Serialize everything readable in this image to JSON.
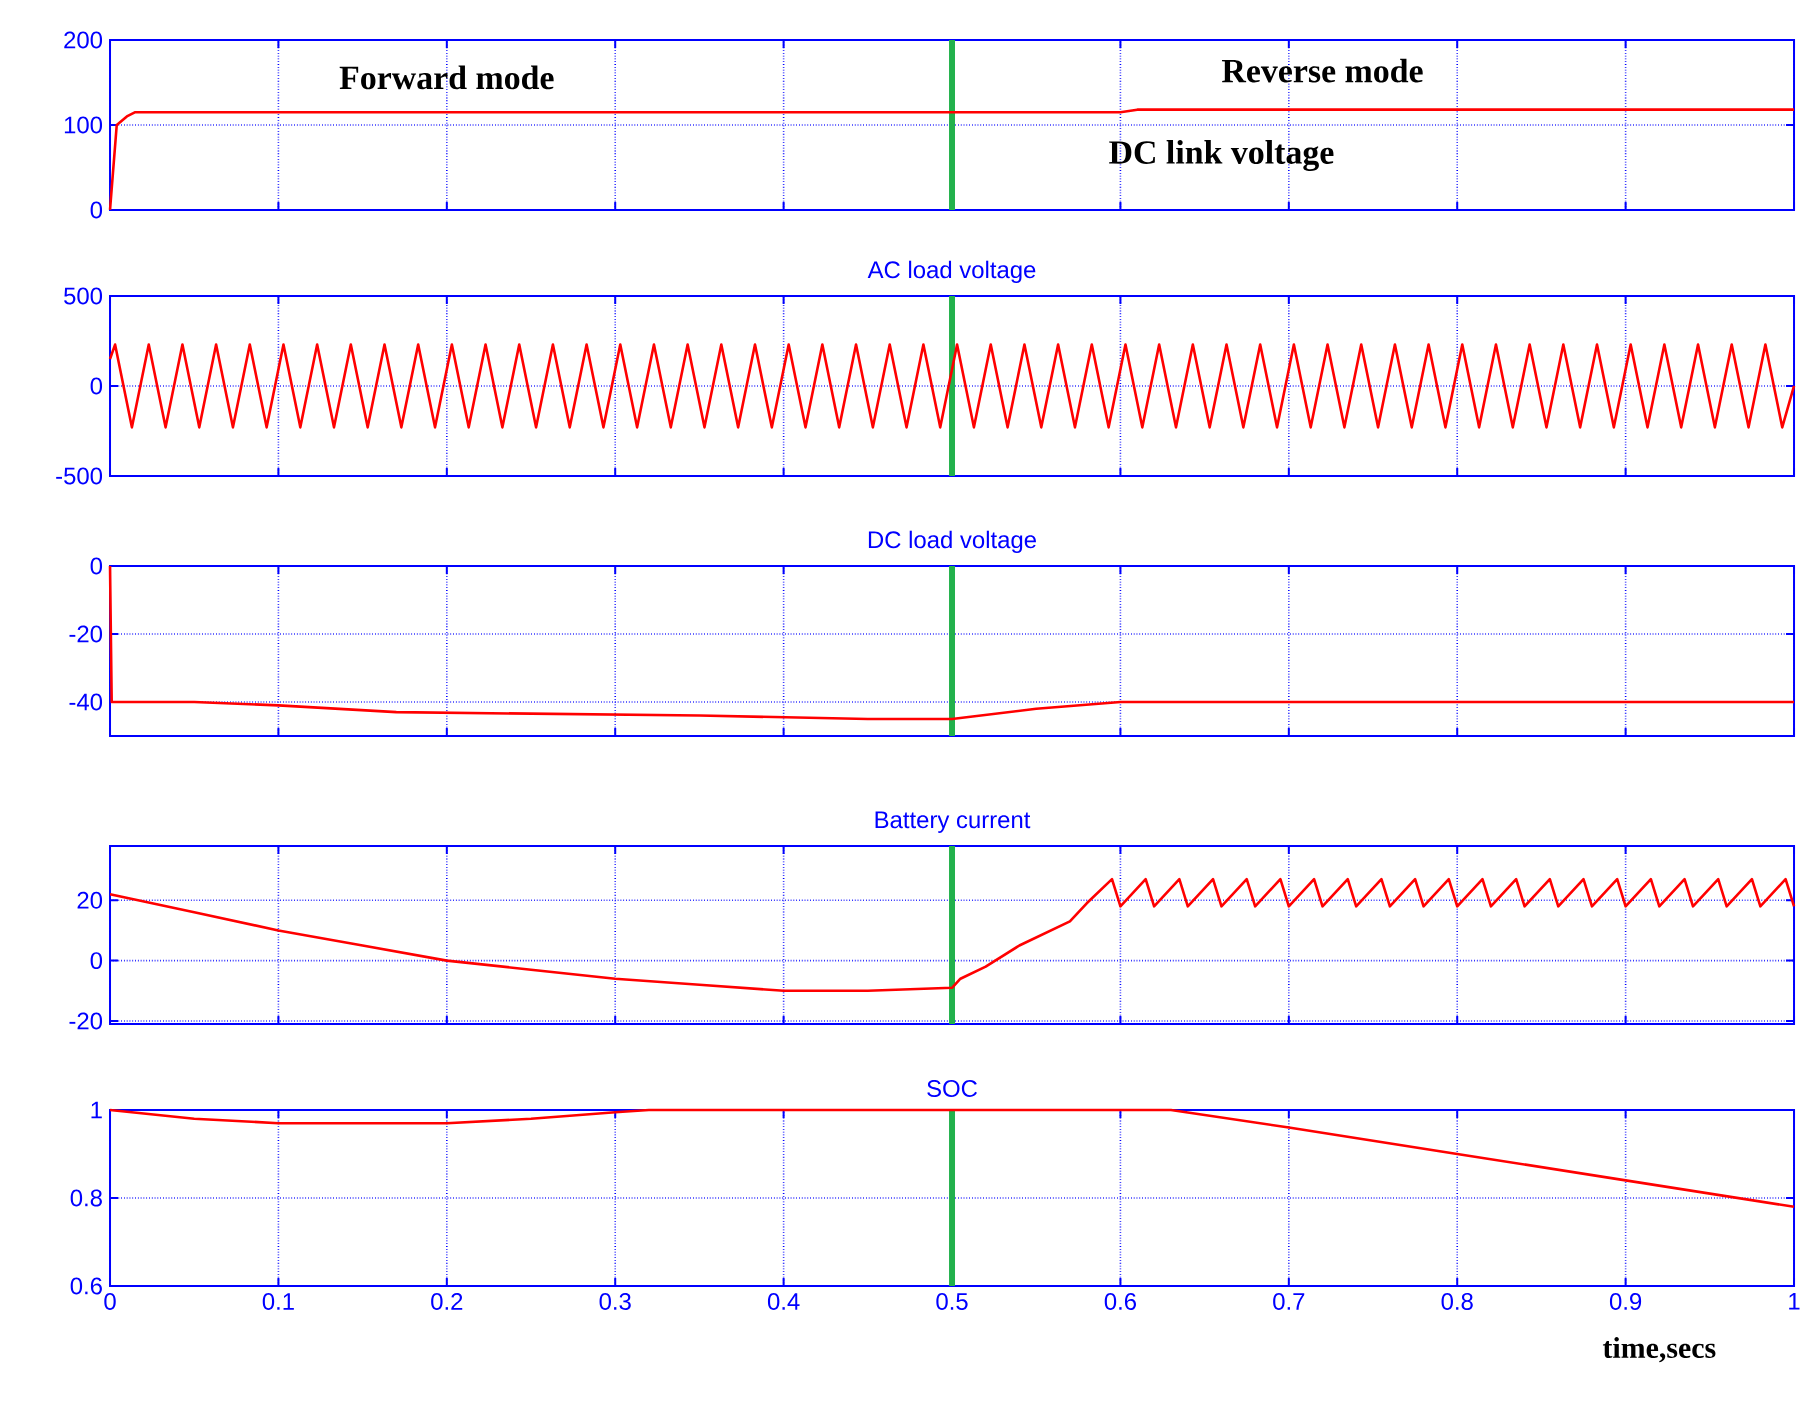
{
  "chart_data": [
    {
      "type": "line",
      "annotations": [
        "Forward mode",
        "Reverse mode",
        "DC link voltage"
      ],
      "x": [
        0,
        0.002,
        0.004,
        0.01,
        0.015,
        0.6,
        0.61,
        1
      ],
      "series": [
        {
          "color": "#ff0000",
          "values": [
            0,
            50,
            100,
            110,
            115,
            115,
            118,
            118
          ]
        }
      ],
      "xlim": [
        0,
        1
      ],
      "ylim": [
        0,
        200
      ],
      "xticks": [
        0,
        0.1,
        0.2,
        0.3,
        0.4,
        0.5,
        0.6,
        0.7,
        0.8,
        0.9,
        1
      ],
      "yticks": [
        0,
        100,
        200
      ],
      "grid": true,
      "tick_labels": "y",
      "ref_lines": [
        {
          "axis": "x",
          "value": 0.5,
          "color": "#22b14c"
        }
      ]
    },
    {
      "type": "line",
      "title": "AC load voltage",
      "x": [
        0,
        0.003,
        0.013,
        0.023,
        0.033,
        0.043,
        0.053,
        0.063,
        0.073,
        0.083,
        0.093,
        0.103,
        0.113,
        0.123,
        0.133,
        0.143,
        0.153,
        0.163,
        0.173,
        0.183,
        0.193,
        0.203,
        0.213,
        0.223,
        0.233,
        0.243,
        0.253,
        0.263,
        0.273,
        0.283,
        0.293,
        0.303,
        0.313,
        0.323,
        0.333,
        0.343,
        0.353,
        0.363,
        0.373,
        0.383,
        0.393,
        0.403,
        0.413,
        0.423,
        0.433,
        0.443,
        0.453,
        0.463,
        0.473,
        0.483,
        0.493,
        0.503,
        0.513,
        0.523,
        0.533,
        0.543,
        0.553,
        0.563,
        0.573,
        0.583,
        0.593,
        0.603,
        0.613,
        0.623,
        0.633,
        0.643,
        0.653,
        0.663,
        0.673,
        0.683,
        0.693,
        0.703,
        0.713,
        0.723,
        0.733,
        0.743,
        0.753,
        0.763,
        0.773,
        0.783,
        0.793,
        0.803,
        0.813,
        0.823,
        0.833,
        0.843,
        0.853,
        0.863,
        0.873,
        0.883,
        0.893,
        0.903,
        0.913,
        0.923,
        0.933,
        0.943,
        0.953,
        0.963,
        0.973,
        0.983,
        0.993,
        1
      ],
      "series": [
        {
          "color": "#ff0000",
          "values": [
            150,
            230,
            -230,
            230,
            -230,
            230,
            -230,
            230,
            -230,
            230,
            -230,
            230,
            -230,
            230,
            -230,
            230,
            -230,
            230,
            -230,
            230,
            -230,
            230,
            -230,
            230,
            -230,
            230,
            -230,
            230,
            -230,
            230,
            -230,
            230,
            -230,
            230,
            -230,
            230,
            -230,
            230,
            -230,
            230,
            -230,
            230,
            -230,
            230,
            -230,
            230,
            -230,
            230,
            -230,
            230,
            -230,
            230,
            -230,
            230,
            -230,
            230,
            -230,
            230,
            -230,
            230,
            -230,
            230,
            -230,
            230,
            -230,
            230,
            -230,
            230,
            -230,
            230,
            -230,
            230,
            -230,
            230,
            -230,
            230,
            -230,
            230,
            -230,
            230,
            -230,
            230,
            -230,
            230,
            -230,
            230,
            -230,
            230,
            -230,
            230,
            -230,
            230,
            -230,
            230,
            -230,
            230,
            -230,
            230,
            -230,
            230,
            -230,
            0
          ]
        }
      ],
      "xlim": [
        0,
        1
      ],
      "ylim": [
        -500,
        500
      ],
      "xticks": [
        0,
        0.1,
        0.2,
        0.3,
        0.4,
        0.5,
        0.6,
        0.7,
        0.8,
        0.9,
        1
      ],
      "yticks": [
        -500,
        0,
        500
      ],
      "grid": true,
      "tick_labels": "y",
      "ref_lines": [
        {
          "axis": "x",
          "value": 0.5,
          "color": "#22b14c"
        }
      ]
    },
    {
      "type": "line",
      "title": "DC load voltage",
      "x": [
        0,
        0.001,
        0.05,
        0.1,
        0.17,
        0.35,
        0.45,
        0.5,
        0.55,
        0.6,
        1
      ],
      "series": [
        {
          "color": "#ff0000",
          "values": [
            0,
            -40,
            -40,
            -41,
            -43,
            -44,
            -45,
            -45,
            -42,
            -40,
            -40
          ]
        }
      ],
      "xlim": [
        0,
        1
      ],
      "ylim": [
        -50,
        0
      ],
      "xticks": [
        0,
        0.1,
        0.2,
        0.3,
        0.4,
        0.5,
        0.6,
        0.7,
        0.8,
        0.9,
        1
      ],
      "yticks": [
        -40,
        -20,
        0
      ],
      "grid": true,
      "tick_labels": "y",
      "ref_lines": [
        {
          "axis": "x",
          "value": 0.5,
          "color": "#22b14c"
        }
      ]
    },
    {
      "type": "line",
      "title": "Battery current",
      "x": [
        0,
        0.05,
        0.1,
        0.15,
        0.2,
        0.25,
        0.3,
        0.35,
        0.4,
        0.45,
        0.5,
        0.505,
        0.52,
        0.54,
        0.57,
        0.58,
        0.595,
        0.6,
        0.615,
        0.62,
        0.635,
        0.64,
        0.655,
        0.66,
        0.675,
        0.68,
        0.695,
        0.7,
        0.715,
        0.72,
        0.735,
        0.74,
        0.755,
        0.76,
        0.775,
        0.78,
        0.795,
        0.8,
        0.815,
        0.82,
        0.835,
        0.84,
        0.855,
        0.86,
        0.875,
        0.88,
        0.895,
        0.9,
        0.915,
        0.92,
        0.935,
        0.94,
        0.955,
        0.96,
        0.975,
        0.98,
        0.995,
        1
      ],
      "series": [
        {
          "color": "#ff0000",
          "values": [
            22,
            16,
            10,
            5,
            0,
            -3,
            -6,
            -8,
            -10,
            -10,
            -9,
            -6,
            -2,
            5,
            13,
            19,
            27,
            18,
            27,
            18,
            27,
            18,
            27,
            18,
            27,
            18,
            27,
            18,
            27,
            18,
            27,
            18,
            27,
            18,
            27,
            18,
            27,
            18,
            27,
            18,
            27,
            18,
            27,
            18,
            27,
            18,
            27,
            18,
            27,
            18,
            27,
            18,
            27,
            18,
            27,
            18,
            27,
            18
          ]
        }
      ],
      "xlim": [
        0,
        1
      ],
      "ylim": [
        -21,
        38
      ],
      "xticks": [
        0,
        0.1,
        0.2,
        0.3,
        0.4,
        0.5,
        0.6,
        0.7,
        0.8,
        0.9,
        1
      ],
      "yticks": [
        -20,
        0,
        20
      ],
      "grid": true,
      "tick_labels": "y",
      "ref_lines": [
        {
          "axis": "x",
          "value": 0.5,
          "color": "#22b14c"
        }
      ]
    },
    {
      "type": "line",
      "title": "SOC",
      "xlabel": "time,secs",
      "x": [
        0,
        0.05,
        0.1,
        0.2,
        0.25,
        0.3,
        0.32,
        0.63,
        0.7,
        0.8,
        0.9,
        1
      ],
      "series": [
        {
          "color": "#ff0000",
          "values": [
            1,
            0.98,
            0.97,
            0.97,
            0.98,
            0.995,
            1,
            1,
            0.96,
            0.9,
            0.84,
            0.78
          ]
        }
      ],
      "xlim": [
        0,
        1
      ],
      "ylim": [
        0.6,
        1
      ],
      "xticks": [
        0,
        0.1,
        0.2,
        0.3,
        0.4,
        0.5,
        0.6,
        0.7,
        0.8,
        0.9,
        1
      ],
      "yticks": [
        0.6,
        0.8,
        1
      ],
      "grid": true,
      "ref_lines": [
        {
          "axis": "x",
          "value": 0.5,
          "color": "#22b14c"
        }
      ]
    }
  ]
}
